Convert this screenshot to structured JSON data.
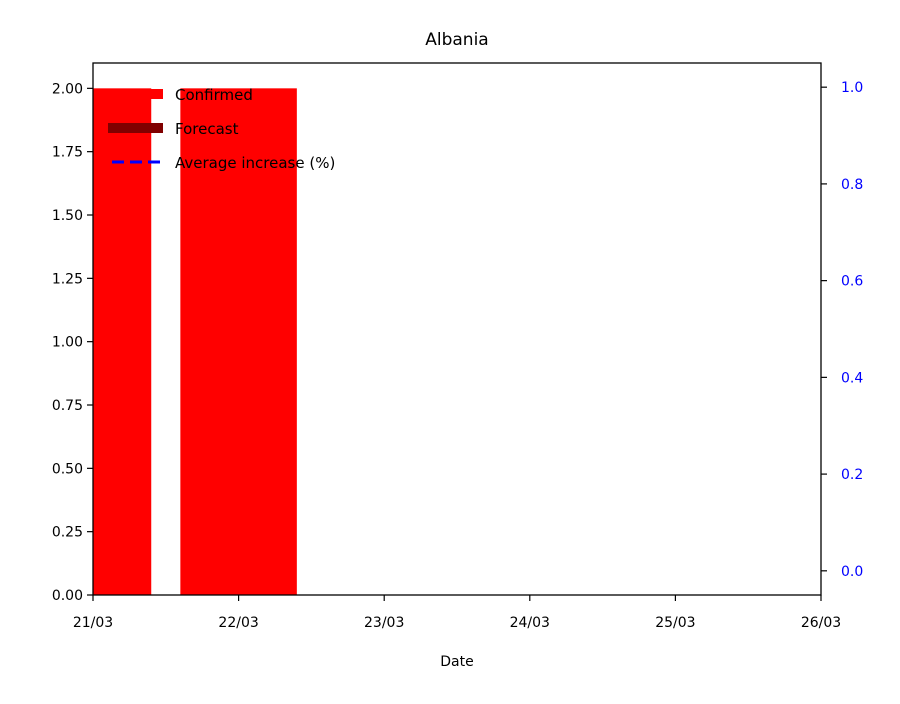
{
  "chart_data": {
    "type": "bar",
    "title": "Albania",
    "xlabel": "Date",
    "ylabel": "",
    "ylabel_right": "",
    "x_ticks": [
      "21/03",
      "22/03",
      "23/03",
      "24/03",
      "25/03",
      "26/03"
    ],
    "xlim": [
      "21/03",
      "26/03"
    ],
    "ylim": [
      0,
      2.1
    ],
    "y_ticks": [
      "0.00",
      "0.25",
      "0.50",
      "0.75",
      "1.00",
      "1.25",
      "1.50",
      "1.75",
      "2.00"
    ],
    "ylim_right": [
      -0.05,
      1.05
    ],
    "y_ticks_right": [
      "0.0",
      "0.2",
      "0.4",
      "0.6",
      "0.8",
      "1.0"
    ],
    "series": [
      {
        "name": "Confirmed",
        "kind": "bar",
        "color": "#ff0000",
        "data": [
          {
            "date": "21/03",
            "value": 2
          },
          {
            "date": "22/03",
            "value": 2
          }
        ]
      },
      {
        "name": "Forecast",
        "kind": "bar",
        "color": "#800000",
        "data": []
      },
      {
        "name": "Average increase (%)",
        "kind": "line",
        "axis": "right",
        "color": "#0000ff",
        "linestyle": "dashed",
        "data": []
      }
    ],
    "legend_position": "top-left",
    "grid": false,
    "right_axis_color": "#0000ff"
  }
}
